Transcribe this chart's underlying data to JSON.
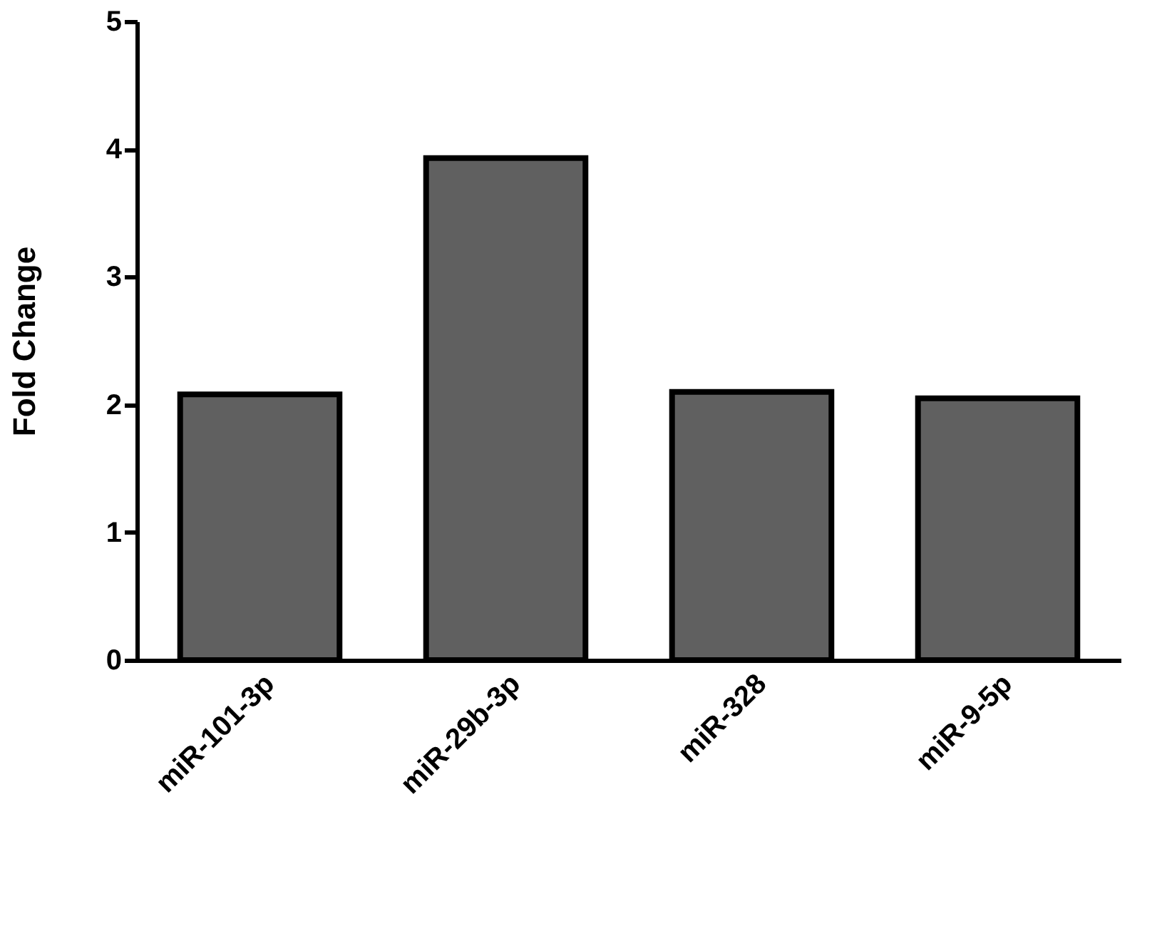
{
  "chart_data": {
    "type": "bar",
    "ylabel": "Fold Change",
    "categories": [
      "miR-101-3p",
      "miR-29b-3p",
      "miR-328",
      "miR-9-5p"
    ],
    "values": [
      2.08,
      3.93,
      2.1,
      2.05
    ],
    "color": "#606060",
    "ylim": [
      0,
      5
    ],
    "yticks": [
      0,
      1,
      2,
      3,
      4,
      5
    ],
    "grid": false
  }
}
